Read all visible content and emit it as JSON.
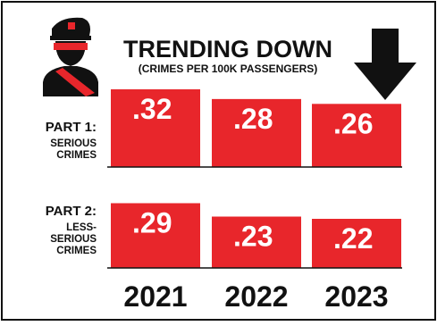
{
  "chart_data": {
    "type": "bar",
    "title": "TRENDING DOWN",
    "subtitle": "(CRIMES PER 100K PASSENGERS)",
    "categories": [
      "2021",
      "2022",
      "2023"
    ],
    "series": [
      {
        "name_line1": "PART 1:",
        "name_lines": [
          "SERIOUS",
          "CRIMES"
        ],
        "values": [
          0.32,
          0.28,
          0.26
        ],
        "labels": [
          ".32",
          ".28",
          ".26"
        ]
      },
      {
        "name_line1": "PART 2:",
        "name_lines": [
          "LESS-",
          "SERIOUS",
          "CRIMES"
        ],
        "values": [
          0.29,
          0.23,
          0.22
        ],
        "labels": [
          ".29",
          ".23",
          ".22"
        ]
      }
    ],
    "ylim": [
      0,
      0.32
    ],
    "grid": false,
    "legend": "left",
    "colors": {
      "bar": "#e8262b",
      "text": "#111111",
      "bar_text": "#ffffff"
    }
  },
  "icons": [
    "police-officer-icon",
    "down-arrow-icon"
  ]
}
